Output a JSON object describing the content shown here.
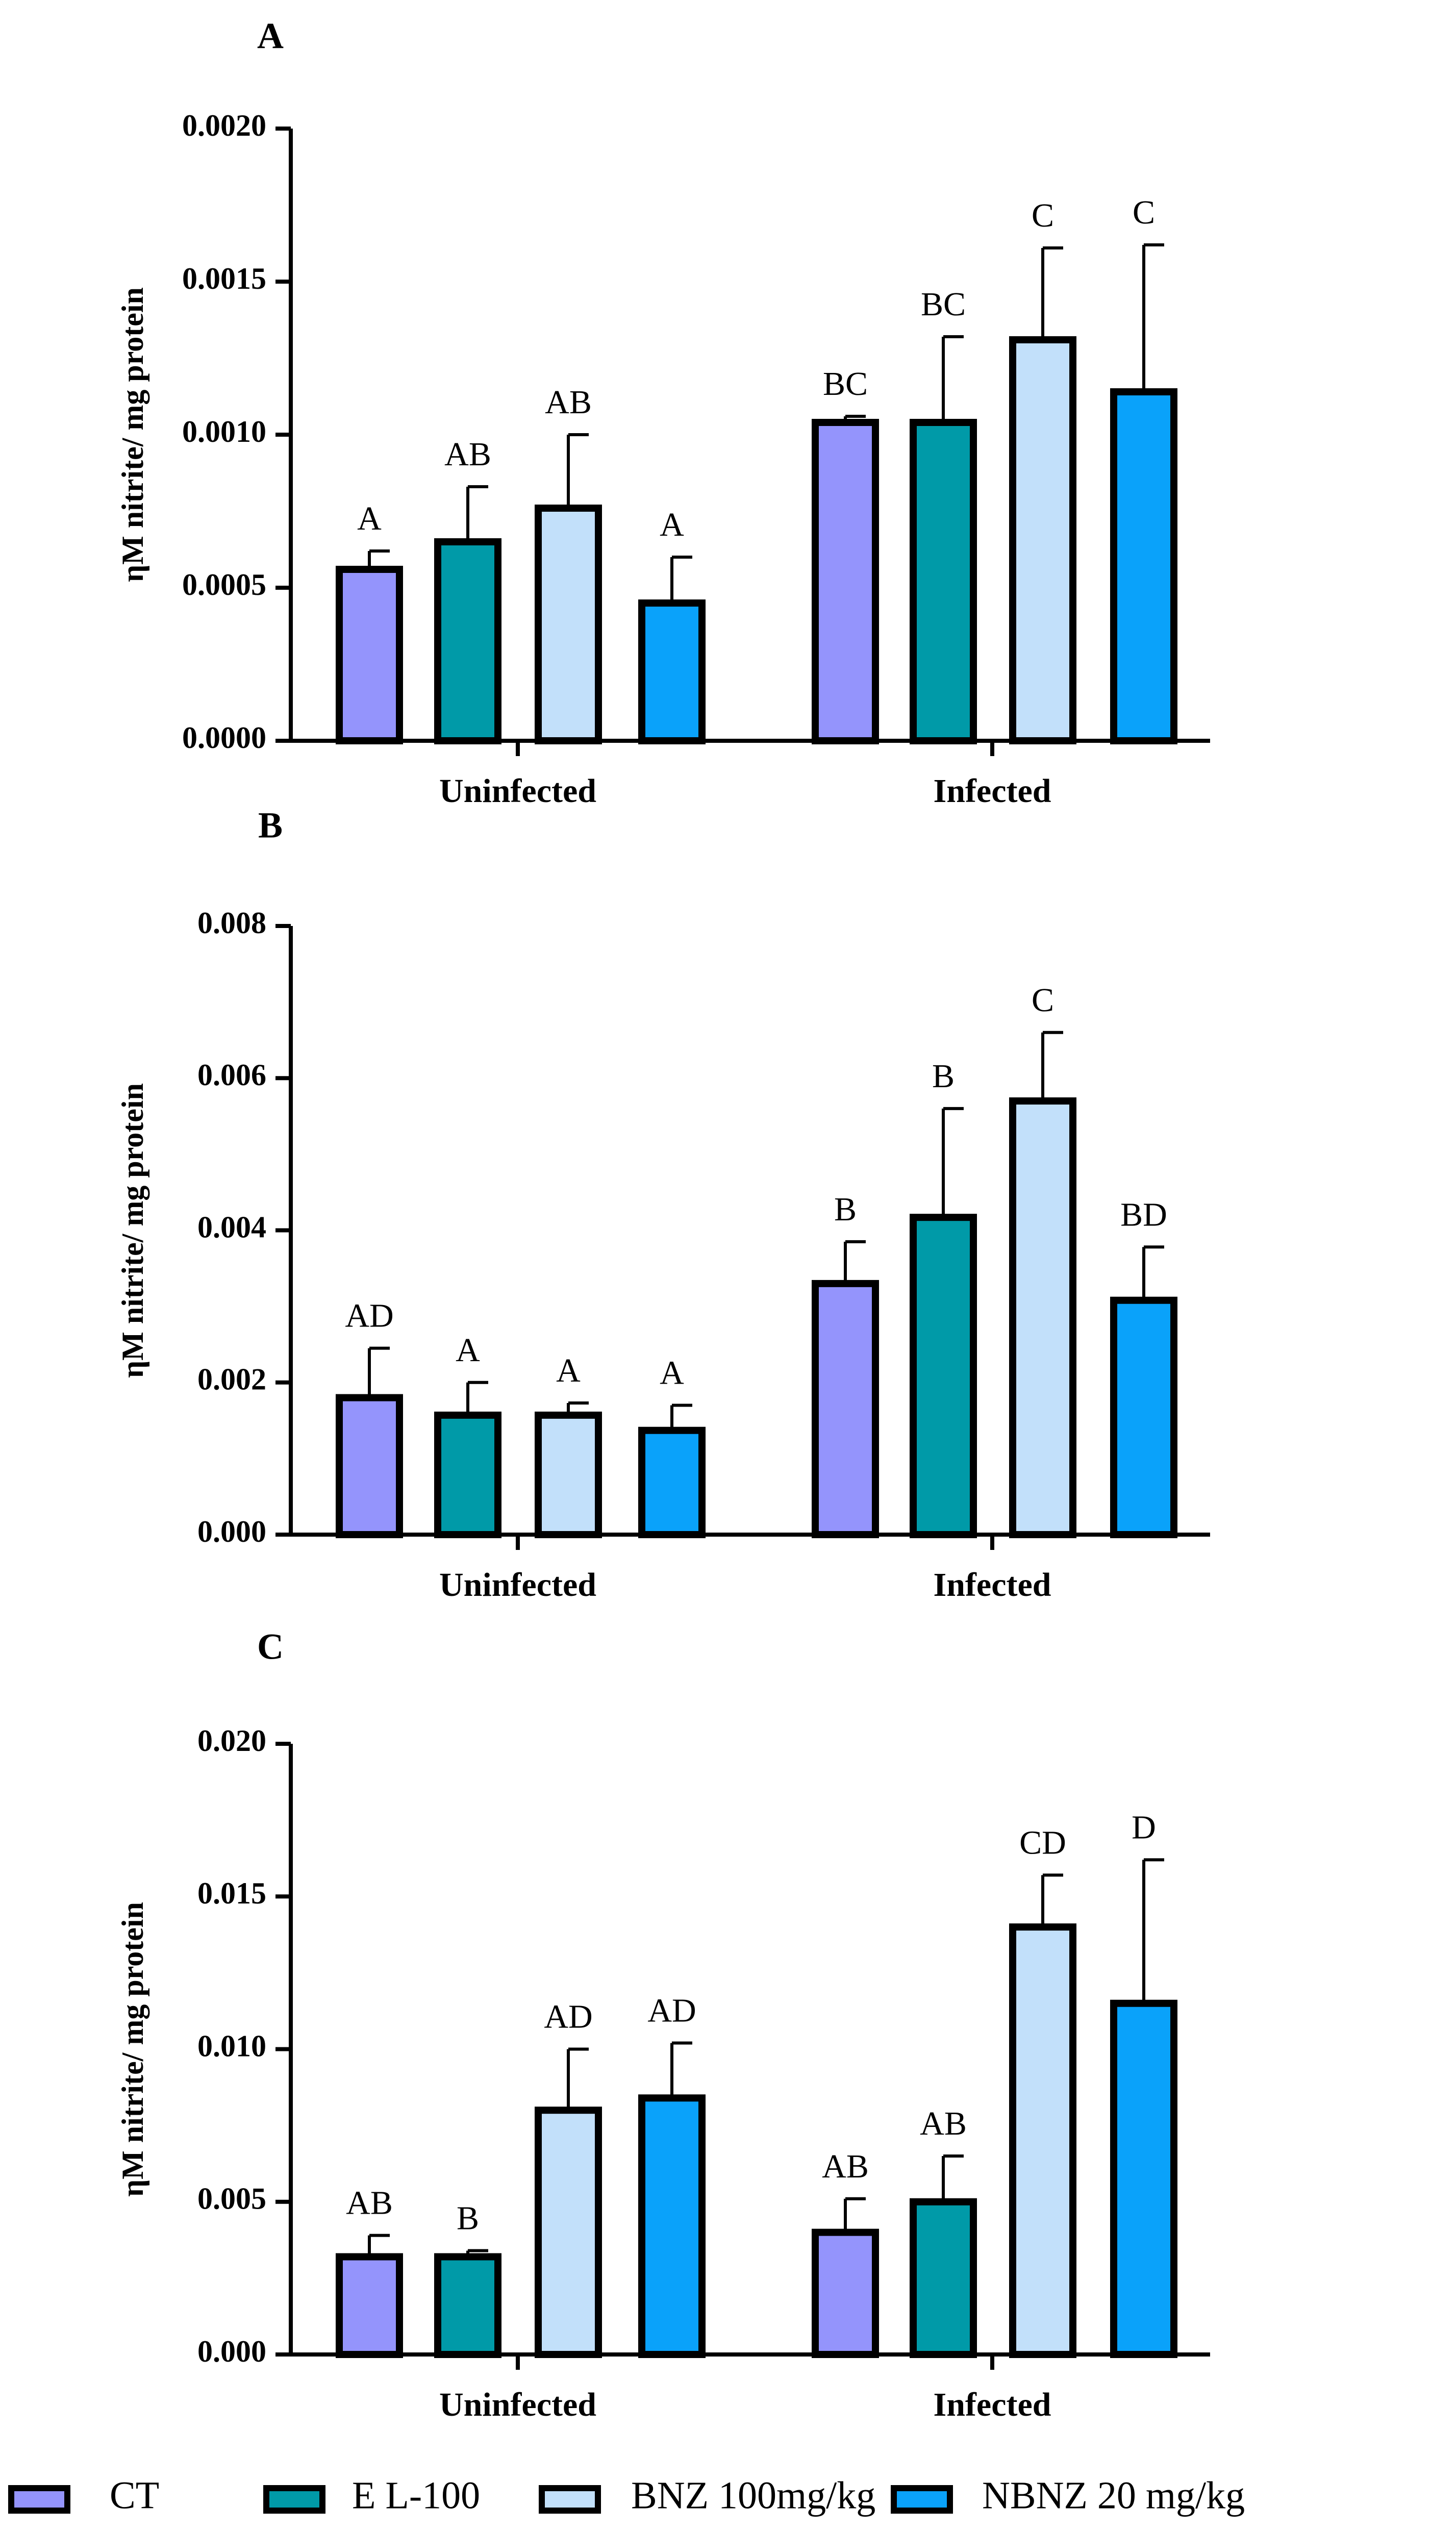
{
  "legend": [
    {
      "label": "CT",
      "color": "#9494fc"
    },
    {
      "label": "E L-100",
      "color": "#009aa8"
    },
    {
      "label": "BNZ 100mg/kg",
      "color": "#c2e0fa"
    },
    {
      "label": "NBNZ 20 mg/kg",
      "color": "#0aa2fa"
    }
  ],
  "chart_data": [
    {
      "panel": "A",
      "type": "bar",
      "ylabel": "ηM nitrite/ mg protein",
      "categories": [
        "Uninfected",
        "Infected"
      ],
      "ylim": [
        0,
        0.002
      ],
      "yticks": [
        "0.0000",
        "0.0005",
        "0.0010",
        "0.0015",
        "0.0020"
      ],
      "series": [
        {
          "name": "CT",
          "values": [
            0.00056,
            0.00104
          ],
          "errors": [
            6e-05,
            2e-05
          ],
          "labels": [
            "A",
            "BC"
          ]
        },
        {
          "name": "E L-100",
          "values": [
            0.00065,
            0.00104
          ],
          "errors": [
            0.00018,
            0.00028
          ],
          "labels": [
            "AB",
            "BC"
          ]
        },
        {
          "name": "BNZ 100mg/kg",
          "values": [
            0.00076,
            0.00131
          ],
          "errors": [
            0.00024,
            0.0003
          ],
          "labels": [
            "AB",
            "C"
          ]
        },
        {
          "name": "NBNZ 20 mg/kg",
          "values": [
            0.00045,
            0.00114
          ],
          "errors": [
            0.00015,
            0.00048
          ],
          "labels": [
            "A",
            "C"
          ]
        }
      ]
    },
    {
      "panel": "B",
      "type": "bar",
      "ylabel": "ηM nitrite/ mg protein",
      "categories": [
        "Uninfected",
        "Infected"
      ],
      "ylim": [
        0,
        0.008
      ],
      "yticks": [
        "0.000",
        "0.002",
        "0.004",
        "0.006",
        "0.008"
      ],
      "series": [
        {
          "name": "CT",
          "values": [
            0.0018,
            0.0033
          ],
          "errors": [
            0.00065,
            0.00055
          ],
          "labels": [
            "AD",
            "B"
          ]
        },
        {
          "name": "E L-100",
          "values": [
            0.00157,
            0.00417
          ],
          "errors": [
            0.00043,
            0.00143
          ],
          "labels": [
            "A",
            "B"
          ]
        },
        {
          "name": "BNZ 100mg/kg",
          "values": [
            0.00157,
            0.0057
          ],
          "errors": [
            0.00016,
            0.0009
          ],
          "labels": [
            "A",
            "C"
          ]
        },
        {
          "name": "NBNZ 20 mg/kg",
          "values": [
            0.00137,
            0.00308
          ],
          "errors": [
            0.00033,
            0.0007
          ],
          "labels": [
            "A",
            "BD"
          ]
        }
      ]
    },
    {
      "panel": "C",
      "type": "bar",
      "ylabel": "ηM nitrite/ mg protein",
      "categories": [
        "Uninfected",
        "Infected"
      ],
      "ylim": [
        0,
        0.02
      ],
      "yticks": [
        "0.000",
        "0.005",
        "0.010",
        "0.015",
        "0.020"
      ],
      "series": [
        {
          "name": "CT",
          "values": [
            0.0032,
            0.004
          ],
          "errors": [
            0.0007,
            0.0011
          ],
          "labels": [
            "AB",
            "AB"
          ]
        },
        {
          "name": "E L-100",
          "values": [
            0.0032,
            0.005
          ],
          "errors": [
            0.0002,
            0.0015
          ],
          "labels": [
            "B",
            "AB"
          ]
        },
        {
          "name": "BNZ 100mg/kg",
          "values": [
            0.008,
            0.014
          ],
          "errors": [
            0.002,
            0.0017
          ],
          "labels": [
            "AD",
            "CD"
          ]
        },
        {
          "name": "NBNZ 20 mg/kg",
          "values": [
            0.0084,
            0.0115
          ],
          "errors": [
            0.0018,
            0.0047
          ],
          "labels": [
            "AD",
            "D"
          ]
        }
      ]
    }
  ]
}
